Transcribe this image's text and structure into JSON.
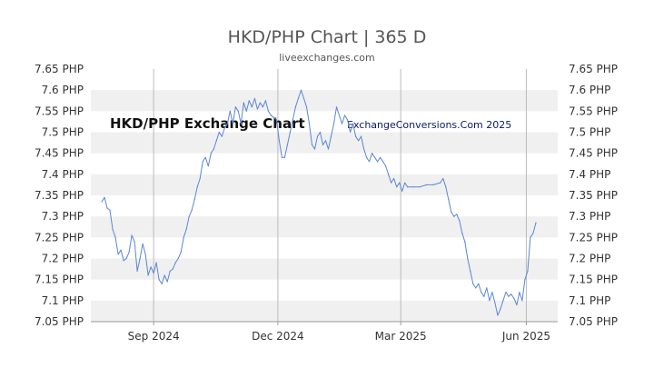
{
  "page": {
    "title": "HKD/PHP Chart | 365 D",
    "subtitle": "liveexchanges.com"
  },
  "watermarks": {
    "left": "HKD/PHP Exchange Chart",
    "right": "ExchangeConversions.Com 2025"
  },
  "chart_data": {
    "type": "line",
    "title": "HKD/PHP Chart | 365 D",
    "subtitle": "liveexchanges.com",
    "xlabel": "",
    "ylabel": "",
    "ylim": [
      7.05,
      7.65
    ],
    "xlim": [
      "2024-07-17",
      "2025-06-24"
    ],
    "y_ticks": [
      {
        "value": 7.65,
        "label": "7.65 PHP"
      },
      {
        "value": 7.6,
        "label": "7.6 PHP"
      },
      {
        "value": 7.55,
        "label": "7.55 PHP"
      },
      {
        "value": 7.5,
        "label": "7.5 PHP"
      },
      {
        "value": 7.45,
        "label": "7.45 PHP"
      },
      {
        "value": 7.4,
        "label": "7.4 PHP"
      },
      {
        "value": 7.35,
        "label": "7.35 PHP"
      },
      {
        "value": 7.3,
        "label": "7.3 PHP"
      },
      {
        "value": 7.25,
        "label": "7.25 PHP"
      },
      {
        "value": 7.2,
        "label": "7.2 PHP"
      },
      {
        "value": 7.15,
        "label": "7.15 PHP"
      },
      {
        "value": 7.1,
        "label": "7.1 PHP"
      },
      {
        "value": 7.05,
        "label": "7.05 PHP"
      }
    ],
    "x_ticks": [
      {
        "date": "2024-09-01",
        "label": "Sep 2024"
      },
      {
        "date": "2024-12-01",
        "label": "Dec 2024"
      },
      {
        "date": "2025-03-01",
        "label": "Mar 2025"
      },
      {
        "date": "2025-06-01",
        "label": "Jun 2025"
      }
    ],
    "grid": true,
    "series": [
      {
        "color": "#5b86d6",
        "points": [
          {
            "x": "2024-07-25",
            "y": 7.335
          },
          {
            "x": "2024-07-27",
            "y": 7.345
          },
          {
            "x": "2024-07-29",
            "y": 7.32
          },
          {
            "x": "2024-07-31",
            "y": 7.315
          },
          {
            "x": "2024-08-02",
            "y": 7.27
          },
          {
            "x": "2024-08-04",
            "y": 7.25
          },
          {
            "x": "2024-08-06",
            "y": 7.21
          },
          {
            "x": "2024-08-08",
            "y": 7.22
          },
          {
            "x": "2024-08-10",
            "y": 7.195
          },
          {
            "x": "2024-08-12",
            "y": 7.2
          },
          {
            "x": "2024-08-14",
            "y": 7.215
          },
          {
            "x": "2024-08-16",
            "y": 7.255
          },
          {
            "x": "2024-08-18",
            "y": 7.24
          },
          {
            "x": "2024-08-20",
            "y": 7.17
          },
          {
            "x": "2024-08-22",
            "y": 7.2
          },
          {
            "x": "2024-08-24",
            "y": 7.235
          },
          {
            "x": "2024-08-26",
            "y": 7.21
          },
          {
            "x": "2024-08-28",
            "y": 7.16
          },
          {
            "x": "2024-08-30",
            "y": 7.18
          },
          {
            "x": "2024-09-01",
            "y": 7.165
          },
          {
            "x": "2024-09-03",
            "y": 7.19
          },
          {
            "x": "2024-09-05",
            "y": 7.15
          },
          {
            "x": "2024-09-07",
            "y": 7.14
          },
          {
            "x": "2024-09-09",
            "y": 7.16
          },
          {
            "x": "2024-09-11",
            "y": 7.145
          },
          {
            "x": "2024-09-13",
            "y": 7.17
          },
          {
            "x": "2024-09-15",
            "y": 7.175
          },
          {
            "x": "2024-09-17",
            "y": 7.19
          },
          {
            "x": "2024-09-19",
            "y": 7.2
          },
          {
            "x": "2024-09-21",
            "y": 7.215
          },
          {
            "x": "2024-09-23",
            "y": 7.25
          },
          {
            "x": "2024-09-25",
            "y": 7.27
          },
          {
            "x": "2024-09-27",
            "y": 7.3
          },
          {
            "x": "2024-09-29",
            "y": 7.315
          },
          {
            "x": "2024-10-01",
            "y": 7.34
          },
          {
            "x": "2024-10-03",
            "y": 7.37
          },
          {
            "x": "2024-10-05",
            "y": 7.39
          },
          {
            "x": "2024-10-07",
            "y": 7.43
          },
          {
            "x": "2024-10-09",
            "y": 7.44
          },
          {
            "x": "2024-10-11",
            "y": 7.42
          },
          {
            "x": "2024-10-13",
            "y": 7.45
          },
          {
            "x": "2024-10-15",
            "y": 7.46
          },
          {
            "x": "2024-10-17",
            "y": 7.48
          },
          {
            "x": "2024-10-19",
            "y": 7.5
          },
          {
            "x": "2024-10-21",
            "y": 7.49
          },
          {
            "x": "2024-10-23",
            "y": 7.51
          },
          {
            "x": "2024-10-25",
            "y": 7.52
          },
          {
            "x": "2024-10-27",
            "y": 7.55
          },
          {
            "x": "2024-10-29",
            "y": 7.52
          },
          {
            "x": "2024-10-31",
            "y": 7.56
          },
          {
            "x": "2024-11-02",
            "y": 7.55
          },
          {
            "x": "2024-11-04",
            "y": 7.52
          },
          {
            "x": "2024-11-06",
            "y": 7.57
          },
          {
            "x": "2024-11-08",
            "y": 7.55
          },
          {
            "x": "2024-11-10",
            "y": 7.575
          },
          {
            "x": "2024-11-12",
            "y": 7.56
          },
          {
            "x": "2024-11-14",
            "y": 7.58
          },
          {
            "x": "2024-11-16",
            "y": 7.555
          },
          {
            "x": "2024-11-18",
            "y": 7.57
          },
          {
            "x": "2024-11-20",
            "y": 7.56
          },
          {
            "x": "2024-11-22",
            "y": 7.575
          },
          {
            "x": "2024-11-24",
            "y": 7.55
          },
          {
            "x": "2024-11-26",
            "y": 7.54
          },
          {
            "x": "2024-11-28",
            "y": 7.535
          },
          {
            "x": "2024-11-30",
            "y": 7.53
          },
          {
            "x": "2024-12-02",
            "y": 7.48
          },
          {
            "x": "2024-12-04",
            "y": 7.44
          },
          {
            "x": "2024-12-06",
            "y": 7.44
          },
          {
            "x": "2024-12-08",
            "y": 7.47
          },
          {
            "x": "2024-12-10",
            "y": 7.5
          },
          {
            "x": "2024-12-12",
            "y": 7.53
          },
          {
            "x": "2024-12-14",
            "y": 7.56
          },
          {
            "x": "2024-12-16",
            "y": 7.58
          },
          {
            "x": "2024-12-18",
            "y": 7.6
          },
          {
            "x": "2024-12-20",
            "y": 7.58
          },
          {
            "x": "2024-12-22",
            "y": 7.56
          },
          {
            "x": "2024-12-24",
            "y": 7.52
          },
          {
            "x": "2024-12-26",
            "y": 7.47
          },
          {
            "x": "2024-12-28",
            "y": 7.46
          },
          {
            "x": "2024-12-30",
            "y": 7.49
          },
          {
            "x": "2025-01-01",
            "y": 7.5
          },
          {
            "x": "2025-01-03",
            "y": 7.47
          },
          {
            "x": "2025-01-05",
            "y": 7.48
          },
          {
            "x": "2025-01-07",
            "y": 7.46
          },
          {
            "x": "2025-01-09",
            "y": 7.49
          },
          {
            "x": "2025-01-11",
            "y": 7.52
          },
          {
            "x": "2025-01-13",
            "y": 7.56
          },
          {
            "x": "2025-01-15",
            "y": 7.54
          },
          {
            "x": "2025-01-17",
            "y": 7.52
          },
          {
            "x": "2025-01-19",
            "y": 7.54
          },
          {
            "x": "2025-01-21",
            "y": 7.53
          },
          {
            "x": "2025-01-23",
            "y": 7.5
          },
          {
            "x": "2025-01-25",
            "y": 7.52
          },
          {
            "x": "2025-01-27",
            "y": 7.49
          },
          {
            "x": "2025-01-29",
            "y": 7.48
          },
          {
            "x": "2025-01-31",
            "y": 7.49
          },
          {
            "x": "2025-02-02",
            "y": 7.46
          },
          {
            "x": "2025-02-04",
            "y": 7.44
          },
          {
            "x": "2025-02-06",
            "y": 7.43
          },
          {
            "x": "2025-02-08",
            "y": 7.45
          },
          {
            "x": "2025-02-10",
            "y": 7.44
          },
          {
            "x": "2025-02-12",
            "y": 7.43
          },
          {
            "x": "2025-02-14",
            "y": 7.44
          },
          {
            "x": "2025-02-16",
            "y": 7.43
          },
          {
            "x": "2025-02-18",
            "y": 7.42
          },
          {
            "x": "2025-02-20",
            "y": 7.4
          },
          {
            "x": "2025-02-22",
            "y": 7.38
          },
          {
            "x": "2025-02-24",
            "y": 7.39
          },
          {
            "x": "2025-02-26",
            "y": 7.37
          },
          {
            "x": "2025-02-28",
            "y": 7.38
          },
          {
            "x": "2025-03-02",
            "y": 7.36
          },
          {
            "x": "2025-03-04",
            "y": 7.38
          },
          {
            "x": "2025-03-06",
            "y": 7.37
          },
          {
            "x": "2025-03-10",
            "y": 7.37
          },
          {
            "x": "2025-03-15",
            "y": 7.37
          },
          {
            "x": "2025-03-20",
            "y": 7.375
          },
          {
            "x": "2025-03-25",
            "y": 7.375
          },
          {
            "x": "2025-03-30",
            "y": 7.38
          },
          {
            "x": "2025-04-01",
            "y": 7.39
          },
          {
            "x": "2025-04-03",
            "y": 7.37
          },
          {
            "x": "2025-04-05",
            "y": 7.34
          },
          {
            "x": "2025-04-07",
            "y": 7.31
          },
          {
            "x": "2025-04-09",
            "y": 7.3
          },
          {
            "x": "2025-04-11",
            "y": 7.305
          },
          {
            "x": "2025-04-13",
            "y": 7.29
          },
          {
            "x": "2025-04-15",
            "y": 7.26
          },
          {
            "x": "2025-04-17",
            "y": 7.24
          },
          {
            "x": "2025-04-19",
            "y": 7.2
          },
          {
            "x": "2025-04-21",
            "y": 7.17
          },
          {
            "x": "2025-04-23",
            "y": 7.14
          },
          {
            "x": "2025-04-25",
            "y": 7.13
          },
          {
            "x": "2025-04-27",
            "y": 7.14
          },
          {
            "x": "2025-04-29",
            "y": 7.12
          },
          {
            "x": "2025-05-01",
            "y": 7.11
          },
          {
            "x": "2025-05-03",
            "y": 7.13
          },
          {
            "x": "2025-05-05",
            "y": 7.1
          },
          {
            "x": "2025-05-07",
            "y": 7.12
          },
          {
            "x": "2025-05-09",
            "y": 7.095
          },
          {
            "x": "2025-05-11",
            "y": 7.065
          },
          {
            "x": "2025-05-13",
            "y": 7.08
          },
          {
            "x": "2025-05-15",
            "y": 7.1
          },
          {
            "x": "2025-05-17",
            "y": 7.12
          },
          {
            "x": "2025-05-19",
            "y": 7.11
          },
          {
            "x": "2025-05-21",
            "y": 7.115
          },
          {
            "x": "2025-05-23",
            "y": 7.105
          },
          {
            "x": "2025-05-25",
            "y": 7.09
          },
          {
            "x": "2025-05-27",
            "y": 7.12
          },
          {
            "x": "2025-05-29",
            "y": 7.1
          },
          {
            "x": "2025-05-31",
            "y": 7.15
          },
          {
            "x": "2025-06-02",
            "y": 7.17
          },
          {
            "x": "2025-06-04",
            "y": 7.25
          },
          {
            "x": "2025-06-06",
            "y": 7.26
          },
          {
            "x": "2025-06-08",
            "y": 7.285
          }
        ]
      }
    ]
  },
  "colors": {
    "background": "#ffffff",
    "band": "#f0f0f0",
    "grid": "#bbbbbb",
    "line": "#5b86d6",
    "axis": "#999999"
  }
}
